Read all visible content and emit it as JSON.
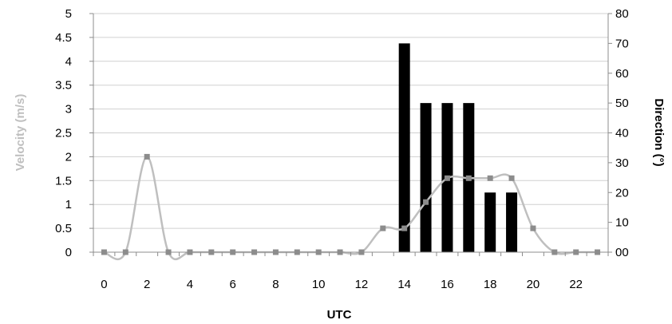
{
  "chart_data": {
    "type": "bar+line",
    "xlabel": "UTC",
    "ylabel_left": "Velocity (m/s)",
    "ylabel_right": "Direction (°)",
    "x_ticks": [
      "0",
      "2",
      "4",
      "6",
      "8",
      "10",
      "12",
      "14",
      "16",
      "18",
      "20",
      "22"
    ],
    "y_left_ticks": [
      "0",
      "0.5",
      "1",
      "1.5",
      "2",
      "2.5",
      "3",
      "3.5",
      "4",
      "4.5",
      "5"
    ],
    "y_right_ticks": [
      "00",
      "10",
      "20",
      "30",
      "40",
      "50",
      "60",
      "70",
      "80"
    ],
    "ylim_left": [
      0,
      5
    ],
    "ylim_right": [
      0,
      80
    ],
    "xlim": [
      -0.5,
      23.5
    ],
    "grid": "horizontal",
    "series": [
      {
        "kind": "bar",
        "axis": "right",
        "color": "#000000",
        "x": [
          14,
          15,
          16,
          17,
          18,
          19
        ],
        "values": [
          70,
          50,
          50,
          50,
          20,
          20
        ]
      },
      {
        "kind": "line",
        "axis": "left",
        "smooth": true,
        "color": "#bfbfbf",
        "marker_color": "#8c8c8c",
        "x": [
          0,
          1,
          2,
          3,
          4,
          5,
          6,
          7,
          8,
          9,
          10,
          11,
          12,
          13,
          14,
          15,
          16,
          17,
          18,
          19,
          20,
          21,
          22,
          23
        ],
        "values": [
          0,
          0,
          2,
          0,
          0,
          0,
          0,
          0,
          0,
          0,
          0,
          0,
          0,
          0.5,
          0.5,
          1.05,
          1.55,
          1.55,
          1.55,
          1.55,
          0.5,
          0,
          0,
          0
        ]
      }
    ]
  }
}
